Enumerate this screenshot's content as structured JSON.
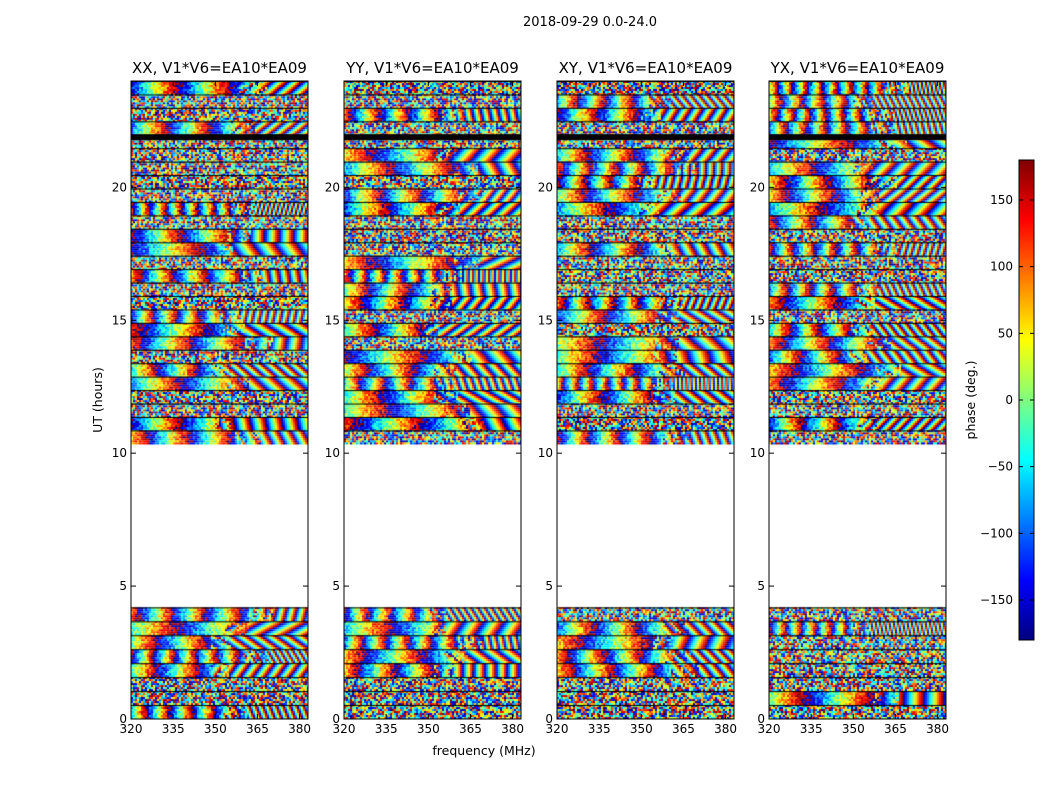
{
  "figure": {
    "title": "2018-09-29 0.0-24.0",
    "xlabel": "frequency (MHz)",
    "ylabel": "UT (hours)"
  },
  "chart_data": {
    "type": "heatmap",
    "x_ticks": [
      320,
      335,
      350,
      365,
      380
    ],
    "y_ticks": [
      0,
      5,
      10,
      15,
      20
    ],
    "xlim": [
      320,
      383
    ],
    "ylim": [
      0,
      24
    ],
    "colorbar": {
      "label": "phase (deg.)",
      "ticks": [
        -150,
        -100,
        -50,
        0,
        50,
        100,
        150
      ],
      "range": [
        -180,
        180
      ],
      "colormap": "jet",
      "colors": [
        "#00007f",
        "#0000ff",
        "#007fff",
        "#00ffff",
        "#7fff7f",
        "#ffff00",
        "#ff7f00",
        "#ff0000",
        "#7f0000"
      ]
    },
    "data_segments_ut": [
      [
        0.0,
        4.2
      ],
      [
        10.35,
        24.0
      ]
    ],
    "no_data_range_ut": [
      4.2,
      10.35
    ],
    "panels": [
      {
        "title": "XX, V1*V6=EA10*EA09",
        "polarization": "XX"
      },
      {
        "title": "YY, V1*V6=EA10*EA09",
        "polarization": "YY"
      },
      {
        "title": "XY, V1*V6=EA10*EA09",
        "polarization": "XY"
      },
      {
        "title": "YX, V1*V6=EA10*EA09",
        "polarization": "YX"
      }
    ]
  }
}
